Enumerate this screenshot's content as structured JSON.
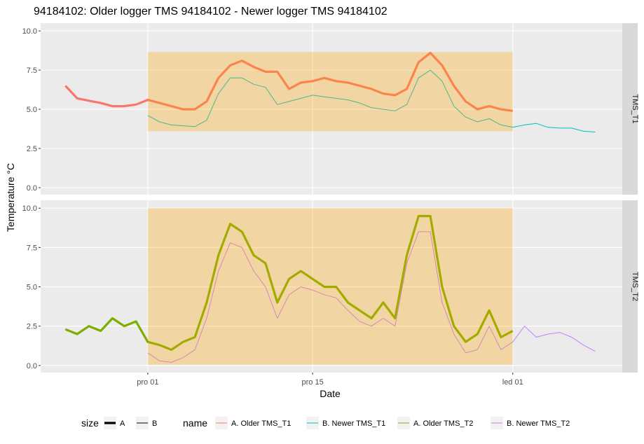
{
  "chart_data": {
    "type": "line",
    "title": "94184102: Older logger TMS 94184102 - Newer logger TMS 94184102",
    "x_label": "Date",
    "y_label": "Temperature °C",
    "x": [
      -7,
      -6,
      -5,
      -4,
      -3,
      -2,
      -1,
      0,
      1,
      2,
      3,
      4,
      5,
      6,
      7,
      8,
      9,
      10,
      11,
      12,
      13,
      14,
      15,
      16,
      17,
      18,
      19,
      20,
      21,
      22,
      23,
      24,
      25,
      26,
      27,
      28,
      29,
      30,
      31,
      32,
      33,
      34,
      35,
      36,
      37,
      38
    ],
    "xlim": [
      -9.1,
      40.3
    ],
    "xticks": [
      {
        "value": 0,
        "label": "pro 01"
      },
      {
        "value": 14,
        "label": "pro 15"
      },
      {
        "value": 31,
        "label": "led 01"
      }
    ],
    "ylim": [
      -0.45,
      10.5
    ],
    "yticks": [
      {
        "value": 0,
        "label": "0.0"
      },
      2.5,
      {
        "value": 5,
        "label": "5.0"
      },
      7.5,
      {
        "value": 10,
        "label": "10.0"
      }
    ],
    "grid": true,
    "size_legend": {
      "title": "size",
      "levels": [
        "A",
        "B"
      ]
    },
    "color_legend_title": "name",
    "highlight_color": "#ffa500",
    "panels": [
      {
        "label": "TMS_T1",
        "highlight": {
          "x": [
            0,
            31
          ],
          "y": [
            3.6,
            8.65
          ]
        },
        "series": [
          {
            "name": "A. Older TMS_T1",
            "color": "#F8766D",
            "size": "A",
            "values": [
              6.5,
              5.7,
              5.55,
              5.4,
              5.2,
              5.2,
              5.3,
              5.6,
              5.4,
              5.2,
              5.0,
              5.0,
              5.5,
              7.0,
              7.8,
              8.1,
              7.7,
              7.4,
              7.4,
              6.3,
              6.7,
              6.8,
              7.0,
              6.8,
              6.7,
              6.5,
              6.3,
              6.0,
              5.9,
              6.3,
              8.0,
              8.6,
              7.8,
              6.5,
              5.5,
              5.0,
              5.2,
              5.0,
              4.9,
              null,
              null,
              null,
              null,
              null,
              null,
              null
            ]
          },
          {
            "name": "B. Newer TMS_T1",
            "color": "#00BFC4",
            "size": "B",
            "values": [
              null,
              null,
              null,
              null,
              null,
              null,
              null,
              4.6,
              4.2,
              4.0,
              3.95,
              3.9,
              4.3,
              6.0,
              7.0,
              7.0,
              6.6,
              6.4,
              5.3,
              5.5,
              5.7,
              5.9,
              5.8,
              5.7,
              5.6,
              5.4,
              5.1,
              5.0,
              4.9,
              5.3,
              7.0,
              7.5,
              6.8,
              5.2,
              4.5,
              4.2,
              4.4,
              4.0,
              3.85,
              4.0,
              4.1,
              3.85,
              3.8,
              3.8,
              3.6,
              3.55
            ]
          }
        ]
      },
      {
        "label": "TMS_T2",
        "highlight": {
          "x": [
            0,
            31
          ],
          "y": [
            0.05,
            10
          ]
        },
        "series": [
          {
            "name": "A. Older TMS_T2",
            "color": "#7CAE00",
            "size": "A",
            "values": [
              2.3,
              2.0,
              2.5,
              2.2,
              3.0,
              2.5,
              2.8,
              1.5,
              1.3,
              1.0,
              1.5,
              1.8,
              4.0,
              7.0,
              9.0,
              8.5,
              7.0,
              6.5,
              4.0,
              5.5,
              6.0,
              5.5,
              5.0,
              5.0,
              4.0,
              3.5,
              3.0,
              4.0,
              3.0,
              7.0,
              9.5,
              9.5,
              5.0,
              2.5,
              1.5,
              2.0,
              3.5,
              1.8,
              2.2,
              null,
              null,
              null,
              null,
              null,
              null,
              null
            ]
          },
          {
            "name": "B. Newer TMS_T2",
            "color": "#C77CFF",
            "size": "B",
            "values": [
              null,
              null,
              null,
              null,
              null,
              null,
              null,
              0.8,
              0.3,
              0.2,
              0.5,
              1.0,
              3.0,
              6.0,
              7.8,
              7.5,
              6.0,
              5.0,
              3.0,
              4.5,
              5.0,
              4.8,
              4.5,
              4.3,
              3.5,
              2.8,
              2.5,
              3.0,
              2.5,
              6.5,
              8.5,
              8.5,
              4.0,
              2.0,
              0.8,
              1.0,
              2.5,
              1.0,
              1.5,
              2.5,
              1.8,
              2.0,
              2.1,
              1.8,
              1.3,
              0.9
            ]
          }
        ]
      }
    ]
  }
}
